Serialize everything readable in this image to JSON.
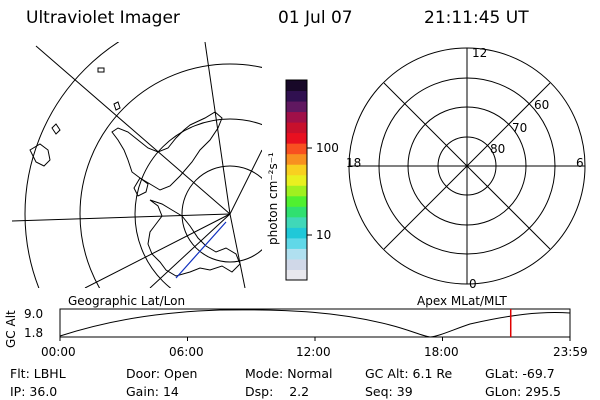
{
  "header": {
    "instrument": "Ultraviolet Imager",
    "date": "01 Jul 07",
    "time": "21:11:45 UT"
  },
  "colorbar": {
    "unit_label": "photon cm⁻²s⁻¹",
    "tick_labels": [
      "100",
      "10"
    ],
    "colors": [
      "#e8e8ee",
      "#d0d8e8",
      "#b0e0f0",
      "#60d8e8",
      "#20c8d8",
      "#40d8b8",
      "#30e070",
      "#50f030",
      "#a0f020",
      "#e8f020",
      "#f8d020",
      "#f89020",
      "#f85020",
      "#e81020",
      "#c8102c",
      "#a01048",
      "#601860",
      "#301050",
      "#180828"
    ]
  },
  "left_map": {
    "caption": "Geographic Lat/Lon"
  },
  "right_map": {
    "caption": "Apex MLat/MLT",
    "mlt_labels": {
      "top": "12",
      "bottom": "0",
      "left": "18",
      "right": "6"
    },
    "lat_labels": [
      "60",
      "70",
      "80"
    ]
  },
  "altitude_plot": {
    "ylabel": "GC Alt",
    "yticks": [
      "9.0",
      "1.8"
    ],
    "xticks": [
      "00:00",
      "06:00",
      "12:00",
      "18:00",
      "23:59"
    ],
    "marker_time": "21:11:45",
    "marker_color": "#e00000"
  },
  "footer": {
    "filter_label": "Flt:",
    "filter_value": "LBHL",
    "door_label": "Door:",
    "door_value": "Open",
    "mode_label": "Mode:",
    "mode_value": "Normal",
    "gcalt_label": "GC Alt:",
    "gcalt_value": "6.1 Re",
    "glat_label": "GLat:",
    "glat_value": "-69.7",
    "ip_label": "IP:",
    "ip_value": "36.0",
    "gain_label": "Gain:",
    "gain_value": "14",
    "dsp_label": "Dsp:",
    "dsp_value": "2.2",
    "seq_label": "Seq:",
    "seq_value": "39",
    "glon_label": "GLon:",
    "glon_value": "295.5"
  }
}
